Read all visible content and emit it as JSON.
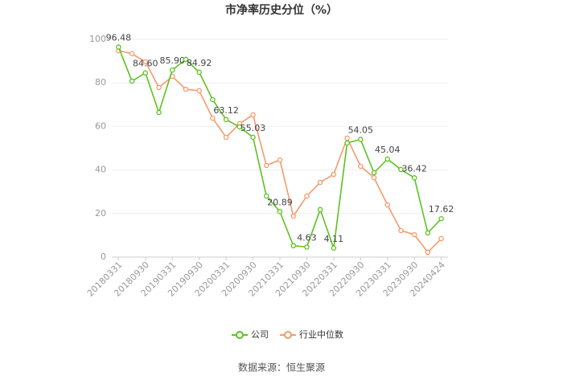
{
  "chart_data": {
    "type": "line",
    "title": "市净率历史分位（%）",
    "categories": [
      "20180331",
      null,
      "20180930",
      null,
      "20190331",
      null,
      "20190930",
      null,
      "20200331",
      null,
      "20200930",
      null,
      "20210331",
      null,
      "20210930",
      null,
      "20220331",
      null,
      "20220930",
      null,
      "20230331",
      null,
      "20230930",
      null,
      "20240424"
    ],
    "series": [
      {
        "name": "公司",
        "color": "#5cc21f",
        "values": [
          96.48,
          80.8,
          84.6,
          66.4,
          85.9,
          90.8,
          84.92,
          72.3,
          63.12,
          59.8,
          55.03,
          28.0,
          20.89,
          5.2,
          4.63,
          21.8,
          4.11,
          52.4,
          54.05,
          38.7,
          45.04,
          40.2,
          36.42,
          11.1,
          17.62
        ],
        "value_labels": [
          "96.48",
          null,
          "84.60",
          null,
          "85.90",
          null,
          "84.92",
          null,
          "63.12",
          null,
          "55.03",
          null,
          "20.89",
          null,
          "4.63",
          null,
          "4.11",
          null,
          "54.05",
          null,
          "45.04",
          null,
          "36.42",
          null,
          "17.62"
        ]
      },
      {
        "name": "行业中位数",
        "color": "#f59a6c",
        "values": [
          94.8,
          93.4,
          89.7,
          77.9,
          83.0,
          77.1,
          76.4,
          63.8,
          55.0,
          61.3,
          65.3,
          42.1,
          44.6,
          18.8,
          28.0,
          34.3,
          38.0,
          54.6,
          41.7,
          36.5,
          24.0,
          12.2,
          10.3,
          2.2,
          8.5
        ]
      }
    ],
    "ylim": [
      0,
      100
    ],
    "yticks": [
      0,
      20,
      40,
      60,
      80,
      100
    ],
    "grid": true,
    "legend": "bottom",
    "source": "数据来源：恒生聚源"
  }
}
